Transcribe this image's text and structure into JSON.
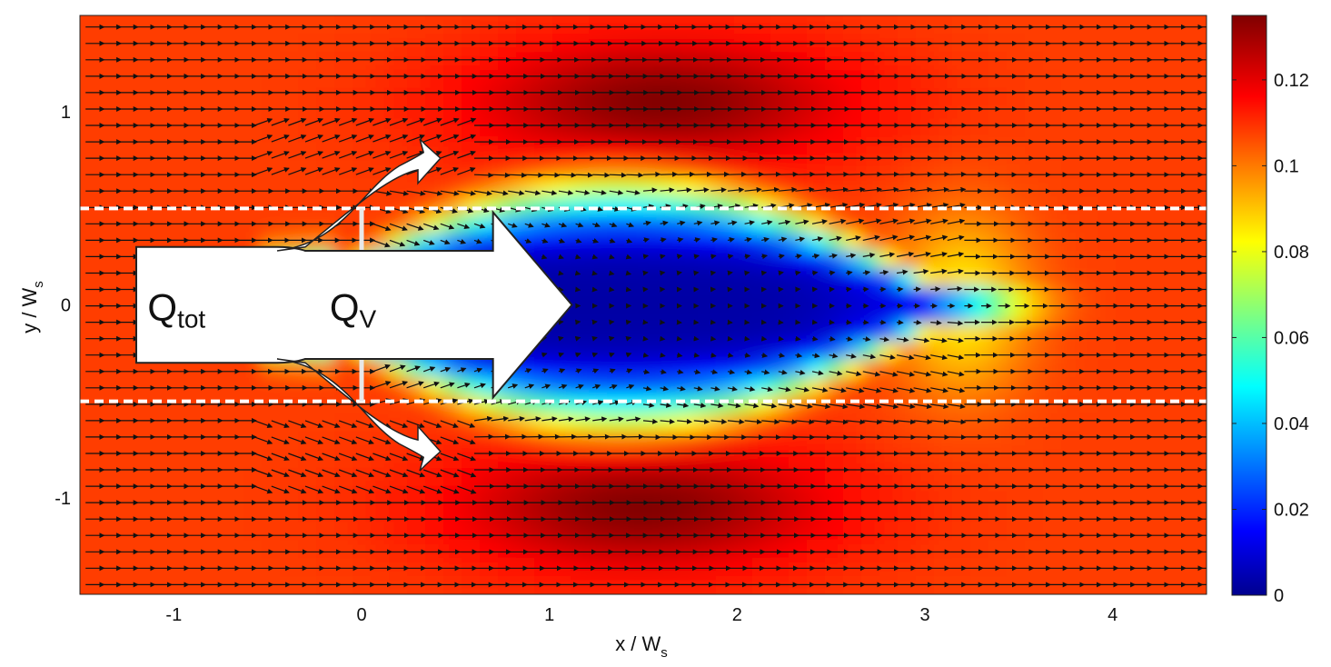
{
  "chart_data": {
    "type": "heatmap",
    "title": "",
    "xlabel": "x / W",
    "xlabel_sub": "s",
    "ylabel": "y / W",
    "ylabel_sub": "s",
    "xlim": [
      -1.5,
      4.5
    ],
    "ylim": [
      -1.5,
      1.5
    ],
    "x_ticks": [
      -1,
      0,
      1,
      2,
      3,
      4
    ],
    "x_tick_labels": [
      "-1",
      "0",
      "1",
      "2",
      "3",
      "4"
    ],
    "y_ticks": [
      1,
      0,
      -1
    ],
    "y_tick_labels": [
      "1",
      "0",
      "-1"
    ],
    "colorbar": {
      "range": [
        0,
        0.135
      ],
      "ticks": [
        0,
        0.02,
        0.04,
        0.06,
        0.08,
        0.1,
        0.12
      ],
      "tick_labels": [
        "0",
        "0.02",
        "0.04",
        "0.06",
        "0.08",
        "0.1",
        "0.12"
      ],
      "colormap": "jet"
    },
    "field": {
      "ambient": 0.11,
      "wake": {
        "x0": -0.1,
        "x1": 3.1,
        "y_half_width": 0.6,
        "center_x": 1.5,
        "core_value": 0.005
      },
      "shear_bands": [
        {
          "x": 1.6,
          "y": 1.05,
          "peak": 0.135
        },
        {
          "x": 1.5,
          "y": -1.05,
          "peak": 0.135
        }
      ]
    },
    "vector_field": {
      "dx": 0.09,
      "dy": 0.085,
      "direction": "positive-x"
    },
    "dashed_lines_y": [
      0.5,
      -0.5
    ],
    "vertical_marks_x": [
      0
    ],
    "annotations": [
      {
        "text": "Q",
        "subscript": "tot"
      },
      {
        "text": "Q",
        "subscript": "V"
      }
    ]
  }
}
